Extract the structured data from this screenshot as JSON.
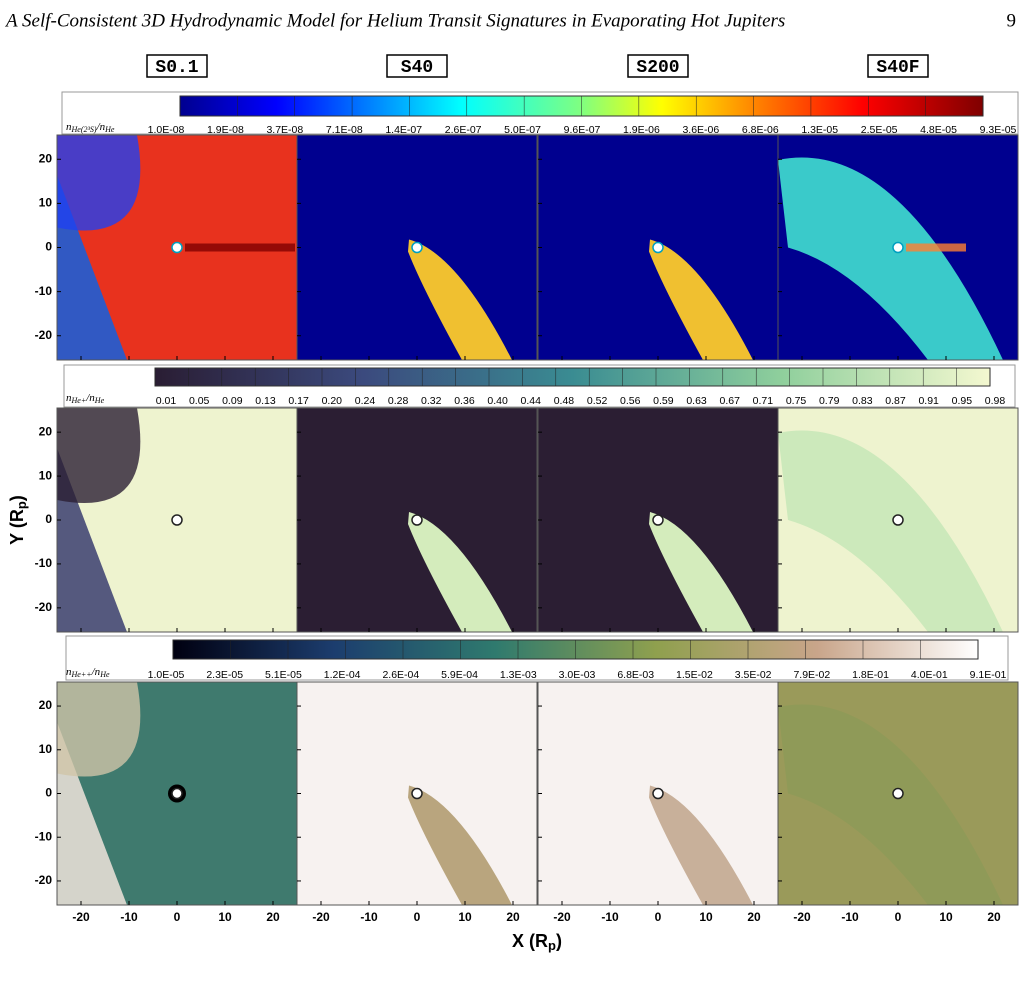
{
  "header": {
    "title": "A Self-Consistent 3D Hydrodynamic Model for Helium Transit Signatures in Evaporating Hot Jupiters",
    "page": "9"
  },
  "figure": {
    "models": [
      "S0.1",
      "S40",
      "S200",
      "S40F"
    ],
    "rows": [
      {
        "colorbar_label": [
          "n",
          "He(2³S)",
          "/n",
          "He"
        ],
        "colorbar_ticks": [
          "1.0E-08",
          "1.9E-08",
          "3.7E-08",
          "7.1E-08",
          "1.4E-07",
          "2.6E-07",
          "5.0E-07",
          "9.6E-07",
          "1.9E-06",
          "3.6E-06",
          "6.8E-06",
          "1.3E-05",
          "2.5E-05",
          "4.8E-05",
          "9.3E-05"
        ]
      },
      {
        "colorbar_label": [
          "n",
          "He+",
          "/n",
          "He"
        ],
        "colorbar_ticks": [
          "0.01",
          "0.05",
          "0.09",
          "0.13",
          "0.17",
          "0.20",
          "0.24",
          "0.28",
          "0.32",
          "0.36",
          "0.40",
          "0.44",
          "0.48",
          "0.52",
          "0.56",
          "0.59",
          "0.63",
          "0.67",
          "0.71",
          "0.75",
          "0.79",
          "0.83",
          "0.87",
          "0.91",
          "0.95",
          "0.98"
        ]
      },
      {
        "colorbar_label": [
          "n",
          "He++",
          "/n",
          "He"
        ],
        "colorbar_ticks": [
          "1.0E-05",
          "2.3E-05",
          "5.1E-05",
          "1.2E-04",
          "2.6E-04",
          "5.9E-04",
          "1.3E-03",
          "3.0E-03",
          "6.8E-03",
          "1.5E-02",
          "3.5E-02",
          "7.9E-02",
          "1.8E-01",
          "4.0E-01",
          "9.1E-01"
        ]
      }
    ],
    "y_ticks": [
      "20",
      "10",
      "0",
      "-10",
      "-20"
    ],
    "x_ticks": [
      "-20",
      "-10",
      "0",
      "10",
      "20"
    ],
    "y_axis_title": [
      "Y (R",
      "p",
      ")"
    ],
    "x_axis_title": [
      "X (R",
      "p",
      ")"
    ]
  }
}
